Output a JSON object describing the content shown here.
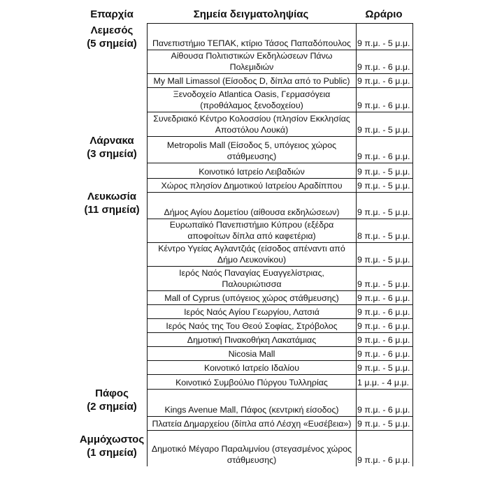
{
  "headers": {
    "region": "Επαρχία",
    "site": "Σημεία δειγματοληψίας",
    "hours": "Ωράριο"
  },
  "regions": [
    {
      "name": "Λεμεσός",
      "count": "(5 σημεία)"
    },
    {
      "name": "Λάρνακα",
      "count": "(3 σημεία)"
    },
    {
      "name": "Λευκωσία",
      "count": "(11 σημεία)"
    },
    {
      "name": "Πάφος",
      "count": "(2 σημεία)"
    },
    {
      "name": "Αμμόχωστος",
      "count": "(1 σημεία)"
    }
  ],
  "rows": [
    {
      "site": "Πανεπιστήμιο ΤΕΠΑΚ, κτίριο Τάσος Παπαδόπουλος",
      "hours": "9 π.μ. - 5 μ.μ."
    },
    {
      "site": "Αίθουσα Πολιτιστικών Εκδηλώσεων Πάνω Πολεμιδιών",
      "hours": "9 π.μ. - 6 μ.μ."
    },
    {
      "site": "My Mall Limassol (Είσοδος D, δίπλα από το Public)",
      "hours": "9 π.μ. - 6 μ.μ."
    },
    {
      "site": "Ξενοδοχείο Atlantica Oasis, Γερμασόγεια (προθάλαμος ξενοδοχείου)",
      "hours": "9 π.μ. - 6 μ.μ."
    },
    {
      "site": "Συνεδριακό Κέντρο Κολοσσίου (πλησίον Εκκλησίας Αποστόλου Λουκά)",
      "hours": "9 π.μ. - 5 μ.μ."
    },
    {
      "site": "Metropolis Mall (Είσοδος 5, υπόγειος χώρος στάθμευσης)",
      "hours": "9 π.μ. - 6 μ.μ."
    },
    {
      "site": "Κοινοτικό Ιατρείο Λειβαδιών",
      "hours": "9 π.μ. - 5 μ.μ."
    },
    {
      "site": "Χώρος πλησίον Δημοτικού Ιατρείου Αραδίππου",
      "hours": "9 π.μ. - 5 μ.μ."
    },
    {
      "site": "Δήμος Αγίου Δομετίου (αίθουσα εκδηλώσεων)",
      "hours": "9 π.μ. - 5 μ.μ."
    },
    {
      "site": "Ευρωπαϊκό Πανεπιστήμιο Κύπρου (εξέδρα αποφοίτων δίπλα από καφετέρια)",
      "hours": "8 π.μ. - 5 μ.μ."
    },
    {
      "site": "Κέντρο Υγείας Αγλαντζιάς (είσοδος απέναντι από Δήμο Λευκονίκου)",
      "hours": "9 π.μ. - 5 μ.μ."
    },
    {
      "site": "Ιερός Ναός Παναγίας Ευαγγελίστριας, Παλουριώτισσα",
      "hours": "9 π.μ. - 5 μ.μ."
    },
    {
      "site": "Mall of Cyprus (υπόγειος χώρος στάθμευσης)",
      "hours": "9 π.μ. - 6 μ.μ."
    },
    {
      "site": "Ιερός Ναός Αγίου Γεωργίου, Λατσιά",
      "hours": "9 π.μ. - 6 μ.μ."
    },
    {
      "site": "Ιερός Ναός της Του Θεού Σοφίας, Στρόβολος",
      "hours": "9 π.μ. - 6 μ.μ."
    },
    {
      "site": "Δημοτική Πινακοθήκη Λακατάμιας",
      "hours": "9 π.μ. - 6 μ.μ."
    },
    {
      "site": "Nicosia Mall",
      "hours": "9 π.μ. - 6 μ.μ."
    },
    {
      "site": "Κοινοτικό Ιατρείο Ιδαλίου",
      "hours": "9 π.μ. - 5 μ.μ."
    },
    {
      "site": "Κοινοτικό Συμβούλιο Πύργου Τυλληρίας",
      "hours": "1 μ.μ. - 4 μ.μ."
    },
    {
      "site": "Kings Avenue Mall, Πάφος (κεντρική είσοδος)",
      "hours": "9 π.μ. - 6 μ.μ."
    },
    {
      "site": "Πλατεία Δημαρχείου (δίπλα από Λέσχη «Ευσέβεια»)",
      "hours": "9 π.μ. - 5 μ.μ."
    },
    {
      "site": "Δημοτικό Μέγαρο Παραλιμνίου (στεγασμένος χώρος στάθμευσης)",
      "hours": "9 π.μ. - 6 μ.μ."
    }
  ]
}
